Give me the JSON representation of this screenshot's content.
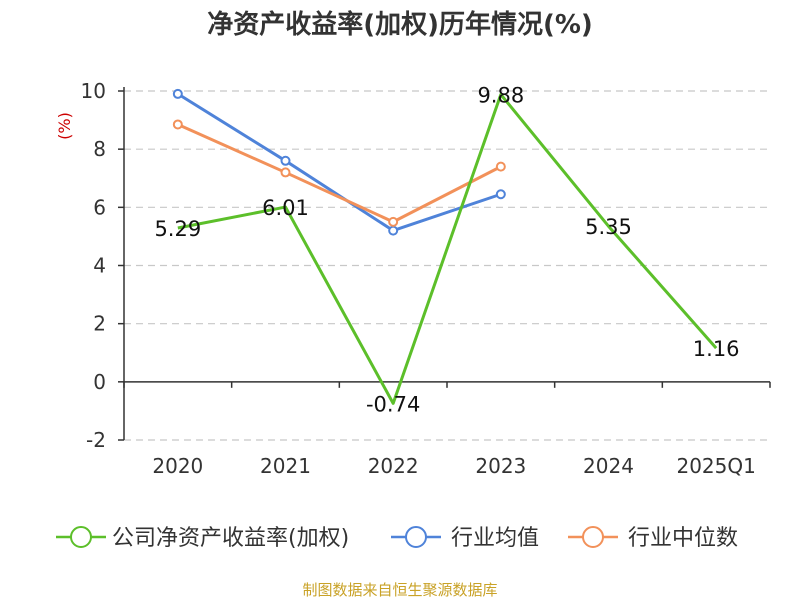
{
  "chart_data": {
    "type": "line",
    "title": "净资产收益率(加权)历年情况(%)",
    "ylabel": "(%)",
    "xlabel": "",
    "categories": [
      "2020",
      "2021",
      "2022",
      "2023",
      "2024",
      "2025Q1"
    ],
    "ylim": [
      -2,
      10
    ],
    "yticks": [
      -2,
      0,
      2,
      4,
      6,
      8,
      10
    ],
    "grid": true,
    "legend_position": "bottom",
    "series": [
      {
        "name": "公司净资产收益率(加权)",
        "color": "#5cbf2a",
        "values": [
          5.29,
          6.01,
          -0.74,
          9.88,
          5.35,
          1.16
        ],
        "labels": [
          "5.29",
          "6.01",
          "-0.74",
          "9.88",
          "5.35",
          "1.16"
        ],
        "show_markers": false
      },
      {
        "name": "行业均值",
        "color": "#4f83d9",
        "values": [
          9.9,
          7.6,
          5.2,
          6.45,
          null,
          null
        ],
        "show_markers": true
      },
      {
        "name": "行业中位数",
        "color": "#f2915a",
        "values": [
          8.85,
          7.2,
          5.5,
          7.4,
          null,
          null
        ],
        "show_markers": true
      }
    ]
  },
  "source": "制图数据来自恒生聚源数据库"
}
